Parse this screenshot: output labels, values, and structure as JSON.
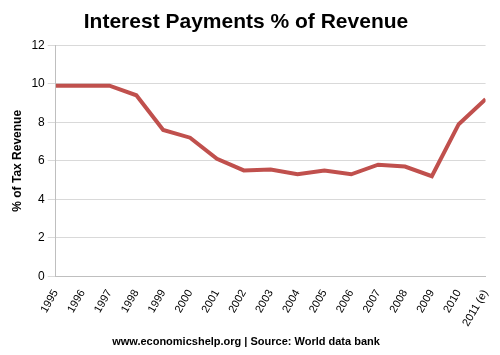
{
  "chart_data": {
    "type": "line",
    "title": "Interest Payments % of Revenue",
    "y_label": "% of Tax Revenue",
    "annotations": [
      "www.economicshelp.org | Source: World data bank"
    ],
    "categories": [
      "1995",
      "1996",
      "1997",
      "1998",
      "1999",
      "2000",
      "2001",
      "2002",
      "2003",
      "2004",
      "2005",
      "2006",
      "2007",
      "2008",
      "2009",
      "2010",
      "2011 (e)"
    ],
    "values": [
      9.9,
      9.9,
      9.9,
      9.4,
      7.6,
      7.2,
      6.1,
      5.5,
      5.55,
      5.3,
      5.5,
      5.3,
      5.8,
      5.7,
      5.2,
      7.9,
      9.2
    ],
    "color": "#c0504d",
    "ylim": [
      0,
      12
    ],
    "yticks": [
      0,
      2,
      4,
      6,
      8,
      10,
      12
    ],
    "grid": true
  }
}
